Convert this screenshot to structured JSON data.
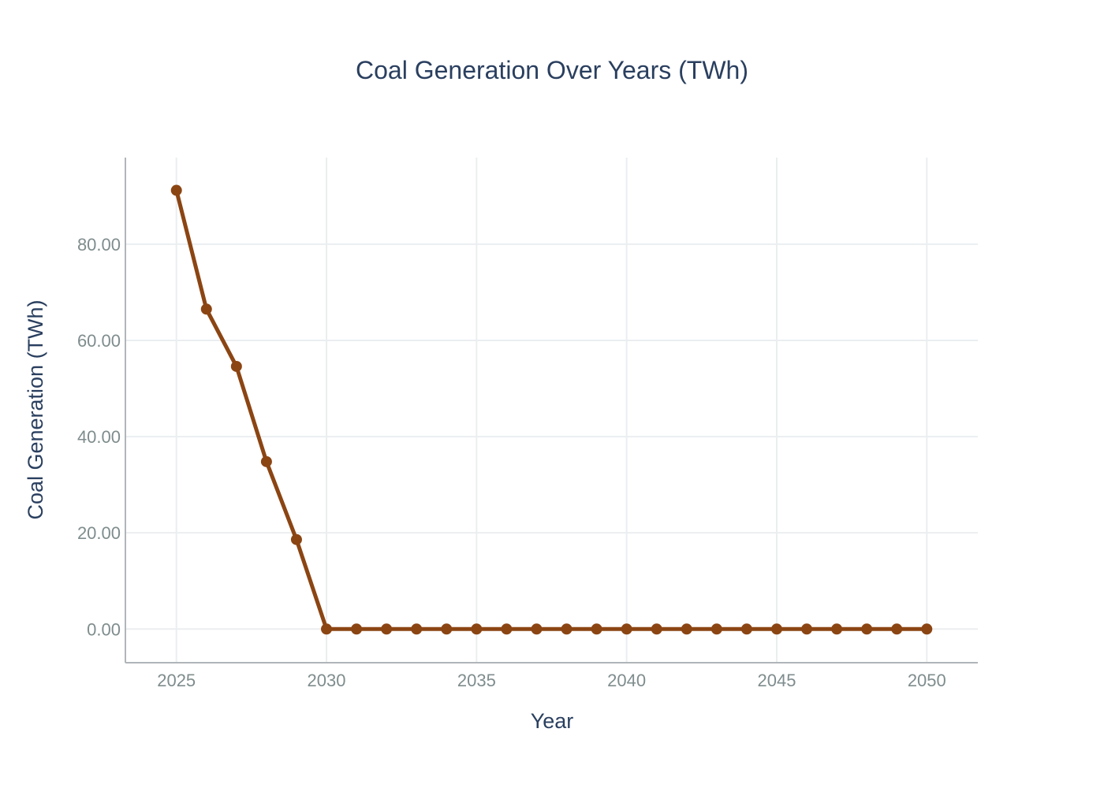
{
  "chart_data": {
    "type": "line",
    "title": "Coal Generation Over Years (TWh)",
    "xlabel": "Year",
    "ylabel": "Coal Generation (TWh)",
    "x": [
      2025,
      2026,
      2027,
      2028,
      2029,
      2030,
      2031,
      2032,
      2033,
      2034,
      2035,
      2036,
      2037,
      2038,
      2039,
      2040,
      2041,
      2042,
      2043,
      2044,
      2045,
      2046,
      2047,
      2048,
      2049,
      2050
    ],
    "series": [
      {
        "values": [
          91.2,
          66.5,
          54.6,
          34.8,
          18.6,
          0,
          0,
          0,
          0,
          0,
          0,
          0,
          0,
          0,
          0,
          0,
          0,
          0,
          0,
          0,
          0,
          0,
          0,
          0,
          0,
          0
        ],
        "color": "#8b4513"
      }
    ],
    "xlim": [
      2023.3,
      2051.7
    ],
    "ylim": [
      -7,
      98
    ],
    "xticks": [
      2025,
      2030,
      2035,
      2040,
      2045,
      2050
    ],
    "xtick_labels": [
      "2025",
      "2030",
      "2035",
      "2040",
      "2045",
      "2050"
    ],
    "yticks": [
      0,
      20,
      40,
      60,
      80
    ],
    "ytick_labels": [
      "0.00",
      "20.00",
      "40.00",
      "60.00",
      "80.00"
    ],
    "grid": true,
    "legend": "none",
    "colors": {
      "line": "#8b4513",
      "marker": "#8b4513",
      "grid": "#ebeef0",
      "axis": "#b0b5b8",
      "title": "#2a3f5f",
      "tick": "#7f8c8d"
    }
  }
}
